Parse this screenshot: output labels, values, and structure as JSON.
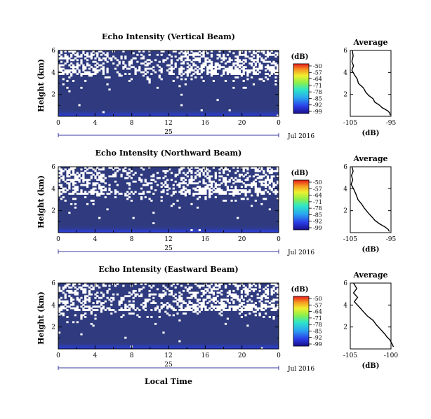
{
  "chart_data": [
    {
      "type": "heatmap",
      "title": "Echo Intensity (Vertical Beam)",
      "ylabel": "Height (km)",
      "ylim": [
        0,
        6
      ],
      "yticks": [
        "6",
        "4",
        "2"
      ],
      "xticks": [
        "0",
        "4",
        "8",
        "12",
        "16",
        "20",
        "0"
      ],
      "xlim": [
        0,
        24
      ],
      "day_label": "25",
      "date_label": "Jul 2016",
      "colorbar": {
        "unit": "(dB)",
        "ticks": [
          "-50",
          "-57",
          "-64",
          "-71",
          "-78",
          "-85",
          "-92",
          "-99"
        ]
      },
      "background_value_db": -96,
      "clear_air_band_km": [
        3.8,
        6.0
      ],
      "profile": {
        "title": "Average",
        "xlabel": "(dB)",
        "xticks": [
          "-105",
          "-95"
        ],
        "xlim": [
          -105,
          -95
        ],
        "yticks": [
          "6",
          "4",
          "2"
        ],
        "ylim": [
          0,
          6
        ],
        "points": [
          [
            -104.5,
            6.0
          ],
          [
            -104.3,
            5.5
          ],
          [
            -104.6,
            5.0
          ],
          [
            -104.2,
            4.6
          ],
          [
            -104.6,
            4.2
          ],
          [
            -104.0,
            3.8
          ],
          [
            -103.3,
            3.4
          ],
          [
            -103.0,
            3.0
          ],
          [
            -101.8,
            2.6
          ],
          [
            -101.2,
            2.2
          ],
          [
            -100.5,
            1.9
          ],
          [
            -99.4,
            1.6
          ],
          [
            -99.0,
            1.3
          ],
          [
            -97.8,
            1.0
          ],
          [
            -97.2,
            0.8
          ],
          [
            -95.8,
            0.5
          ],
          [
            -95.3,
            0.3
          ],
          [
            -95.2,
            0.1
          ]
        ]
      }
    },
    {
      "type": "heatmap",
      "title": "Echo Intensity (Northward Beam)",
      "ylabel": "Height (km)",
      "ylim": [
        0,
        6
      ],
      "yticks": [
        "6",
        "4",
        "2"
      ],
      "xticks": [
        "0",
        "4",
        "8",
        "12",
        "16",
        "20",
        "0"
      ],
      "xlim": [
        0,
        24
      ],
      "day_label": "25",
      "date_label": "Jul 2016",
      "colorbar": {
        "unit": "(dB)",
        "ticks": [
          "-50",
          "-57",
          "-64",
          "-71",
          "-78",
          "-85",
          "-92",
          "-99"
        ]
      },
      "background_value_db": -96,
      "clear_air_band_km": [
        3.4,
        6.0
      ],
      "profile": {
        "title": "Average",
        "xlabel": "(dB)",
        "xticks": [
          "-105",
          "-95"
        ],
        "xlim": [
          -105,
          -95
        ],
        "yticks": [
          "6",
          "4",
          "2"
        ],
        "ylim": [
          0,
          6
        ],
        "points": [
          [
            -104.6,
            6.0
          ],
          [
            -104.3,
            5.6
          ],
          [
            -104.7,
            5.2
          ],
          [
            -104.4,
            4.8
          ],
          [
            -104.8,
            4.4
          ],
          [
            -104.2,
            4.0
          ],
          [
            -103.6,
            3.5
          ],
          [
            -103.1,
            3.0
          ],
          [
            -102.2,
            2.6
          ],
          [
            -101.5,
            2.2
          ],
          [
            -100.6,
            1.8
          ],
          [
            -99.6,
            1.4
          ],
          [
            -98.9,
            1.1
          ],
          [
            -97.8,
            0.8
          ],
          [
            -96.4,
            0.5
          ],
          [
            -95.7,
            0.3
          ],
          [
            -95.4,
            0.1
          ]
        ]
      }
    },
    {
      "type": "heatmap",
      "title": "Echo Intensity (Eastward Beam)",
      "ylabel": "Height (km)",
      "ylim": [
        0,
        6
      ],
      "yticks": [
        "6",
        "4",
        "2"
      ],
      "xticks": [
        "0",
        "4",
        "8",
        "12",
        "16",
        "20",
        "0"
      ],
      "xlim": [
        0,
        24
      ],
      "day_label": "25",
      "date_label": "Jul 2016",
      "xlabel": "Local Time",
      "colorbar": {
        "unit": "(dB)",
        "ticks": [
          "-50",
          "-57",
          "-64",
          "-71",
          "-78",
          "-85",
          "-92",
          "-99"
        ]
      },
      "background_value_db": -96,
      "clear_air_band_km": [
        3.4,
        6.0
      ],
      "profile": {
        "title": "Average",
        "xlabel": "(dB)",
        "xticks": [
          "-105",
          "-100"
        ],
        "xlim": [
          -105,
          -100
        ],
        "yticks": [
          "6",
          "4",
          "2"
        ],
        "ylim": [
          0,
          6
        ],
        "points": [
          [
            -104.6,
            6.0
          ],
          [
            -104.2,
            5.5
          ],
          [
            -104.6,
            5.1
          ],
          [
            -104.1,
            4.7
          ],
          [
            -104.5,
            4.3
          ],
          [
            -104.0,
            3.9
          ],
          [
            -103.4,
            3.4
          ],
          [
            -102.9,
            3.0
          ],
          [
            -102.2,
            2.6
          ],
          [
            -101.8,
            2.2
          ],
          [
            -101.3,
            1.8
          ],
          [
            -100.8,
            1.4
          ],
          [
            -100.5,
            1.1
          ],
          [
            -100.1,
            0.8
          ],
          [
            -99.9,
            0.5
          ],
          [
            -99.7,
            0.2
          ]
        ]
      }
    }
  ]
}
